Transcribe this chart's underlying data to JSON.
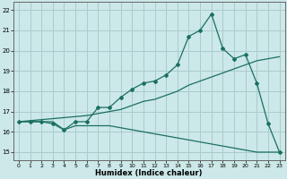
{
  "title": "",
  "xlabel": "Humidex (Indice chaleur)",
  "bg_color": "#cce8e8",
  "grid_color": "#aacccc",
  "line_color": "#1a7060",
  "xlim": [
    -0.5,
    23.5
  ],
  "ylim": [
    14.6,
    22.4
  ],
  "xticks": [
    0,
    1,
    2,
    3,
    4,
    5,
    6,
    7,
    8,
    9,
    10,
    11,
    12,
    13,
    14,
    15,
    16,
    17,
    18,
    19,
    20,
    21,
    22,
    23
  ],
  "yticks": [
    15,
    16,
    17,
    18,
    19,
    20,
    21,
    22
  ],
  "line1_x": [
    0,
    1,
    2,
    3,
    4,
    5,
    6,
    7,
    8,
    9,
    10,
    11,
    12,
    13,
    14,
    15,
    16,
    17,
    18,
    19,
    20,
    21,
    22,
    23
  ],
  "line1_y": [
    16.5,
    16.5,
    16.5,
    16.4,
    16.1,
    16.5,
    16.5,
    17.2,
    17.2,
    17.7,
    18.1,
    18.4,
    18.5,
    18.8,
    19.3,
    20.7,
    21.0,
    21.8,
    20.1,
    19.6,
    19.8,
    18.4,
    16.4,
    15.0
  ],
  "line2_x": [
    0,
    1,
    2,
    3,
    4,
    5,
    6,
    7,
    8,
    9,
    10,
    11,
    12,
    13,
    14,
    15,
    16,
    17,
    18,
    19,
    20,
    21,
    22,
    23
  ],
  "line2_y": [
    16.5,
    16.5,
    16.5,
    16.5,
    16.1,
    16.3,
    16.3,
    16.3,
    16.3,
    16.2,
    16.1,
    16.0,
    15.9,
    15.8,
    15.7,
    15.6,
    15.5,
    15.4,
    15.3,
    15.2,
    15.1,
    15.0,
    15.0,
    15.0
  ],
  "line3_x": [
    0,
    1,
    2,
    3,
    4,
    5,
    6,
    7,
    8,
    9,
    10,
    11,
    12,
    13,
    14,
    15,
    16,
    17,
    18,
    19,
    20,
    21,
    22,
    23
  ],
  "line3_y": [
    16.5,
    16.55,
    16.6,
    16.65,
    16.7,
    16.75,
    16.8,
    16.9,
    17.0,
    17.1,
    17.3,
    17.5,
    17.6,
    17.8,
    18.0,
    18.3,
    18.5,
    18.7,
    18.9,
    19.1,
    19.3,
    19.5,
    19.6,
    19.7
  ]
}
